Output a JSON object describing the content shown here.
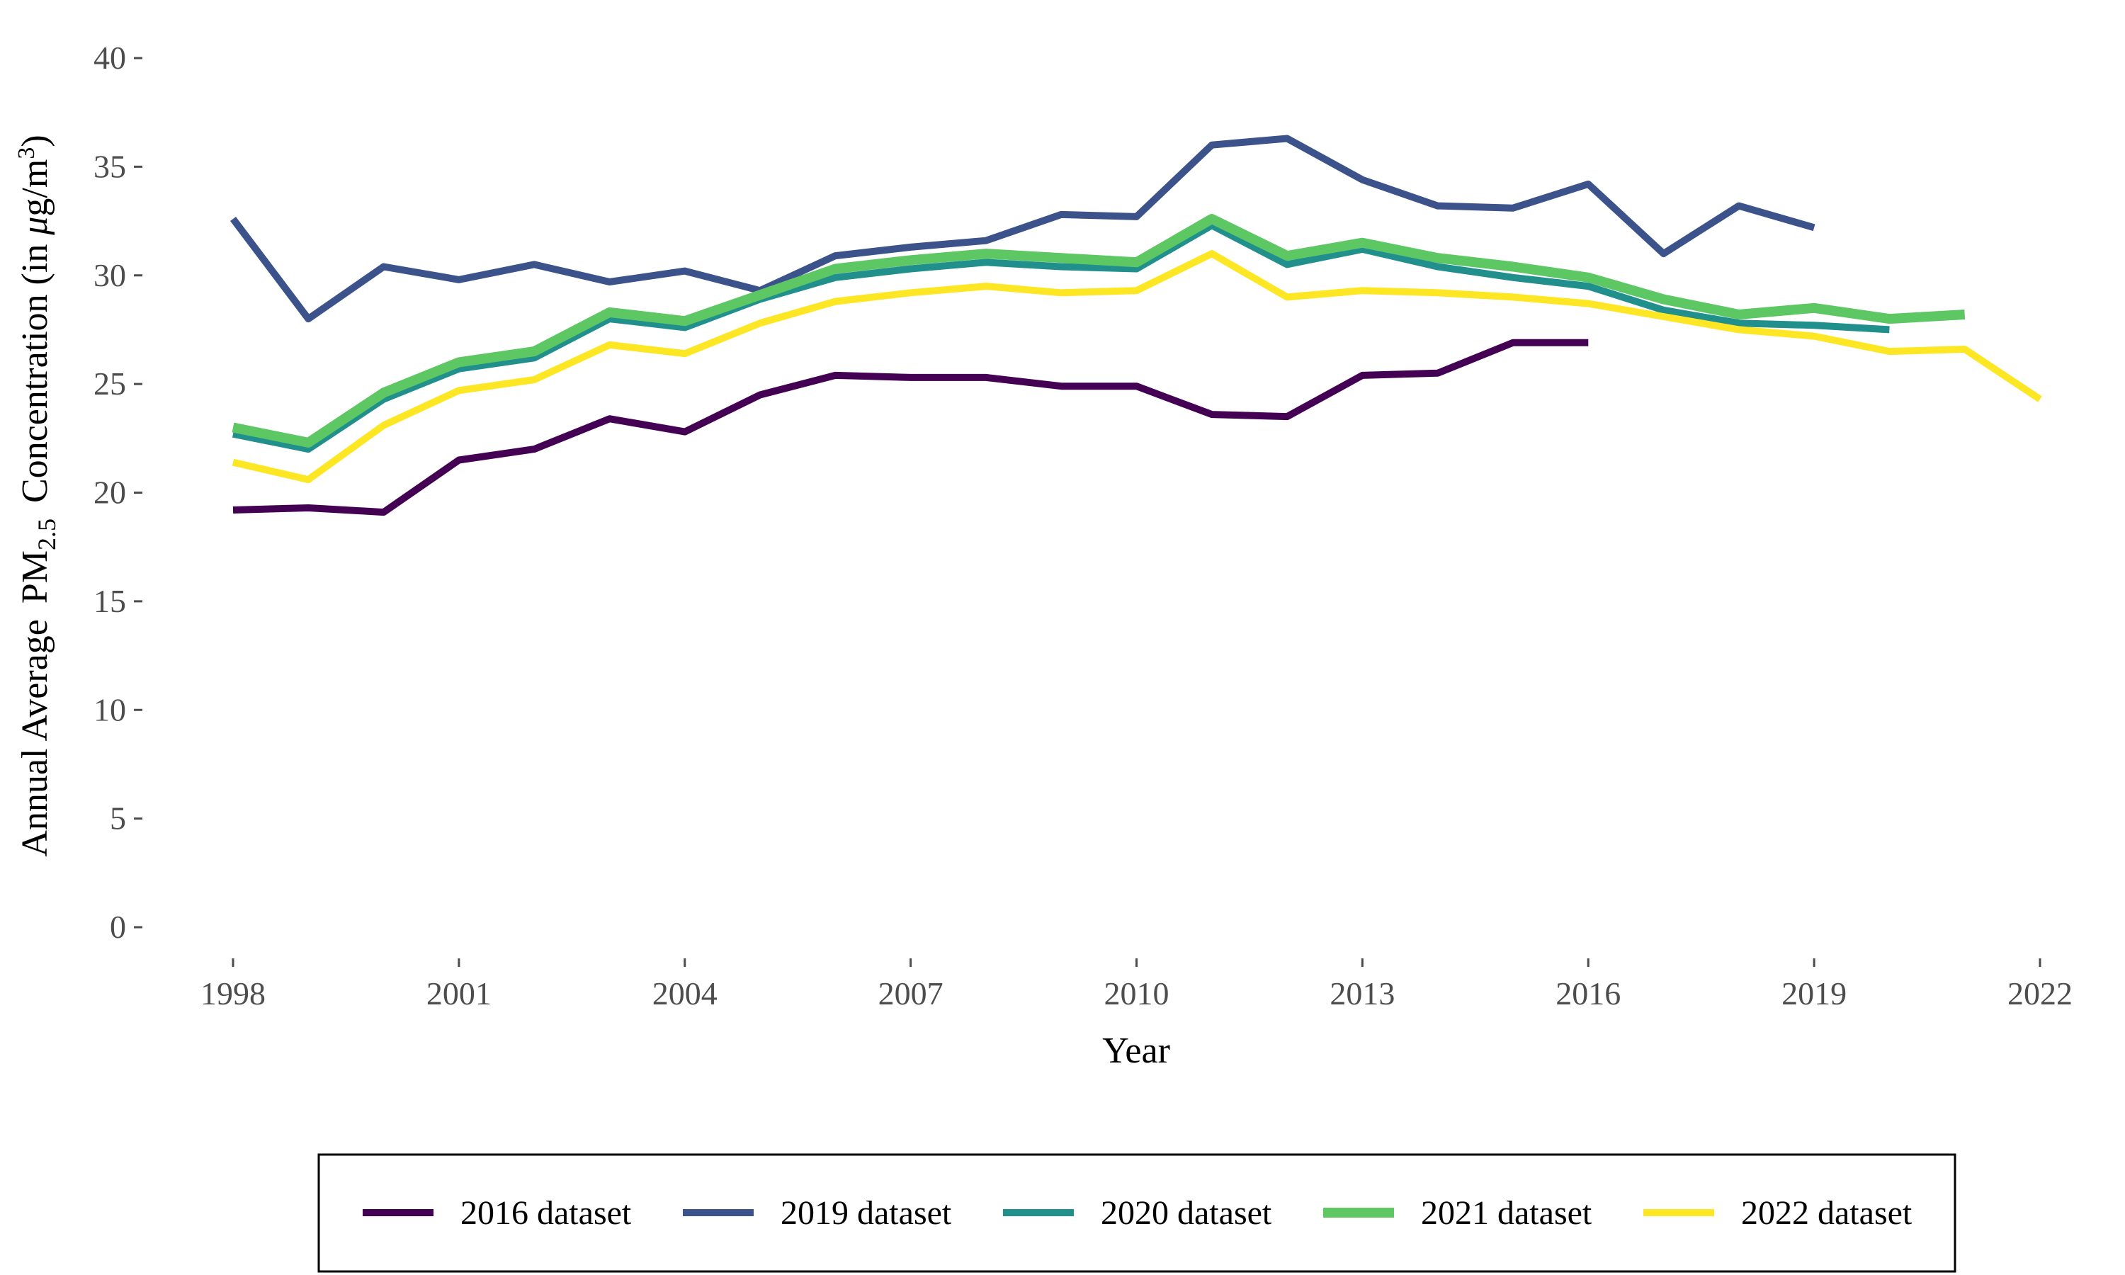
{
  "chart_data": {
    "type": "line",
    "xlabel": "Year",
    "ylabel": {
      "prefix": "Annual Average",
      "pm": "PM",
      "pm_sub": "2.5",
      "mid": "Concentration (in ",
      "mu": "μ",
      "unit": "g/m",
      "sup": "3",
      "suffix": ")"
    },
    "xlim": [
      1998,
      2022
    ],
    "ylim": [
      0,
      40
    ],
    "x_ticks": [
      1998,
      2001,
      2004,
      2007,
      2010,
      2013,
      2016,
      2019,
      2022
    ],
    "y_ticks": [
      0,
      5,
      10,
      15,
      20,
      25,
      30,
      35,
      40
    ],
    "grid": false,
    "legend_position": "bottom",
    "series": [
      {
        "name": "2016 dataset",
        "color": "#440154",
        "x": [
          1998,
          1999,
          2000,
          2001,
          2002,
          2003,
          2004,
          2005,
          2006,
          2007,
          2008,
          2009,
          2010,
          2011,
          2012,
          2013,
          2014,
          2015,
          2016
        ],
        "values": [
          19.2,
          19.3,
          19.1,
          21.5,
          22.0,
          23.4,
          22.8,
          24.5,
          25.4,
          25.3,
          25.3,
          24.9,
          24.9,
          23.6,
          23.5,
          25.4,
          25.5,
          26.9,
          26.9
        ]
      },
      {
        "name": "2019 dataset",
        "color": "#3B528B",
        "x": [
          1998,
          1999,
          2000,
          2001,
          2002,
          2003,
          2004,
          2005,
          2006,
          2007,
          2008,
          2009,
          2010,
          2011,
          2012,
          2013,
          2014,
          2015,
          2016,
          2017,
          2018,
          2019
        ],
        "values": [
          32.6,
          28.0,
          30.4,
          29.8,
          30.5,
          29.7,
          30.2,
          29.3,
          30.9,
          31.3,
          31.6,
          32.8,
          32.7,
          36.0,
          36.3,
          34.4,
          33.2,
          33.1,
          34.2,
          31.0,
          33.2,
          32.2
        ]
      },
      {
        "name": "2020 dataset",
        "color": "#21908C",
        "x": [
          1998,
          1999,
          2000,
          2001,
          2002,
          2003,
          2004,
          2005,
          2006,
          2007,
          2008,
          2009,
          2010,
          2011,
          2012,
          2013,
          2014,
          2015,
          2016,
          2017,
          2018,
          2019,
          2020
        ],
        "values": [
          22.7,
          22.0,
          24.3,
          25.7,
          26.2,
          28.0,
          27.6,
          28.9,
          29.9,
          30.3,
          30.6,
          30.4,
          30.3,
          32.3,
          30.5,
          31.2,
          30.4,
          29.9,
          29.5,
          28.4,
          27.8,
          27.7,
          27.5
        ]
      },
      {
        "name": "2021 dataset",
        "color": "#5DC863",
        "x": [
          1998,
          1999,
          2000,
          2001,
          2002,
          2003,
          2004,
          2005,
          2006,
          2007,
          2008,
          2009,
          2010,
          2011,
          2012,
          2013,
          2014,
          2015,
          2016,
          2017,
          2018,
          2019,
          2020,
          2021
        ],
        "values": [
          23.0,
          22.3,
          24.6,
          26.0,
          26.5,
          28.3,
          27.9,
          29.1,
          30.3,
          30.7,
          31.0,
          30.8,
          30.6,
          32.6,
          30.9,
          31.5,
          30.8,
          30.4,
          29.9,
          28.9,
          28.2,
          28.5,
          28.0,
          28.2
        ]
      },
      {
        "name": "2022 dataset",
        "color": "#FDE725",
        "x": [
          1998,
          1999,
          2000,
          2001,
          2002,
          2003,
          2004,
          2005,
          2006,
          2007,
          2008,
          2009,
          2010,
          2011,
          2012,
          2013,
          2014,
          2015,
          2016,
          2017,
          2018,
          2019,
          2020,
          2021,
          2022
        ],
        "values": [
          21.4,
          20.6,
          23.1,
          24.7,
          25.2,
          26.8,
          26.4,
          27.8,
          28.8,
          29.2,
          29.5,
          29.2,
          29.3,
          31.0,
          29.0,
          29.3,
          29.2,
          29.0,
          28.7,
          28.1,
          27.5,
          27.2,
          26.5,
          26.6,
          24.3
        ]
      }
    ]
  }
}
